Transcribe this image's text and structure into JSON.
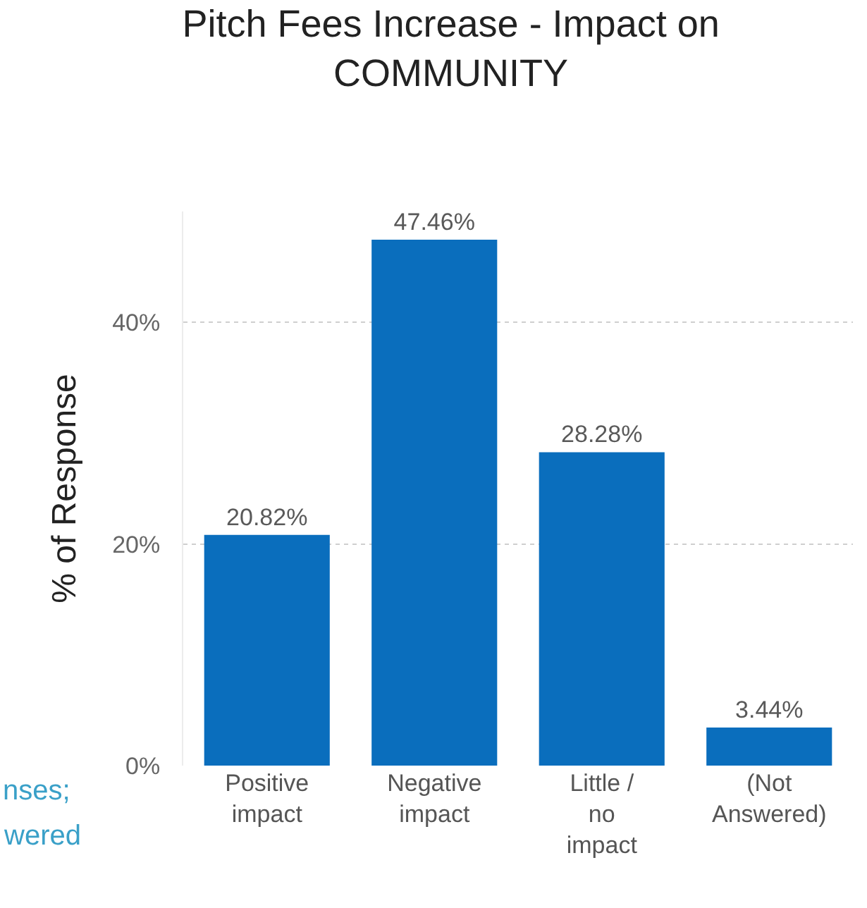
{
  "chart_data": {
    "type": "bar",
    "title": "Pitch Fees Increase - Impact on\nCOMMUNITY",
    "ylabel": "% of Response",
    "categories": [
      "Positive\nimpact",
      "Negative\nimpact",
      "Little /\nno\nimpact",
      "(Not\nAnswered)"
    ],
    "values": [
      20.82,
      47.46,
      28.28,
      3.44
    ],
    "color": "#0a6ebd",
    "value_labels": [
      "20.82%",
      "47.46%",
      "28.28%",
      "3.44%"
    ],
    "ylim": [
      0,
      50
    ],
    "yticks": [
      {
        "value": 0,
        "label": "0%"
      },
      {
        "value": 20,
        "label": "20%"
      },
      {
        "value": 40,
        "label": "40%"
      }
    ],
    "grid": "y",
    "legend": false,
    "annotations": [
      "nses;",
      "wered"
    ]
  }
}
